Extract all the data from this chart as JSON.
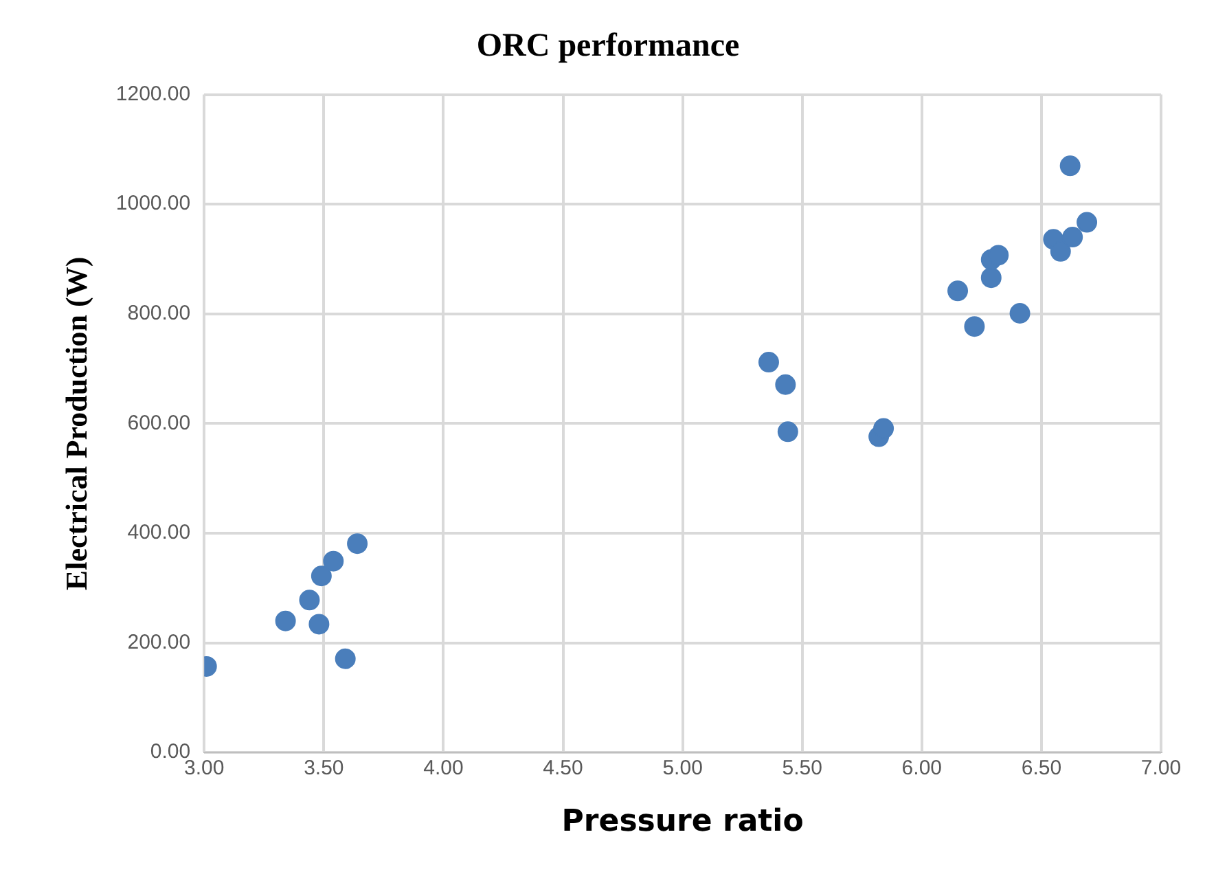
{
  "chart_data": {
    "type": "scatter",
    "title": "ORC performance",
    "xlabel": "Pressure ratio",
    "ylabel": "Electrical Production (W)",
    "x": [
      3.01,
      3.34,
      3.44,
      3.48,
      3.49,
      3.54,
      3.59,
      3.64,
      5.36,
      5.43,
      5.44,
      5.82,
      5.84,
      6.15,
      6.22,
      6.29,
      6.29,
      6.32,
      6.41,
      6.55,
      6.58,
      6.63,
      6.62,
      6.69
    ],
    "values": [
      157,
      240,
      278,
      234,
      322,
      349,
      171,
      381,
      712,
      671,
      585,
      576,
      591,
      842,
      777,
      866,
      899,
      907,
      801,
      936,
      914,
      940,
      1070,
      967
    ],
    "color": "#4a7ebb",
    "marker": "circle",
    "grid": true,
    "legend": false,
    "xlim": [
      3,
      7
    ],
    "xticks": [
      {
        "value": 3,
        "label": "3.00"
      },
      {
        "value": 3.5,
        "label": "3.50"
      },
      {
        "value": 4,
        "label": "4.00"
      },
      {
        "value": 4.5,
        "label": "4.50"
      },
      {
        "value": 5,
        "label": "5.00"
      },
      {
        "value": 5.5,
        "label": "5.50"
      },
      {
        "value": 6,
        "label": "6.00"
      },
      {
        "value": 6.5,
        "label": "6.50"
      },
      {
        "value": 7,
        "label": "7.00"
      }
    ],
    "ylim": [
      0,
      1200
    ],
    "yticks": [
      {
        "value": 0,
        "label": "0.00"
      },
      {
        "value": 200,
        "label": "200.00"
      },
      {
        "value": 400,
        "label": "400.00"
      },
      {
        "value": 600,
        "label": "600.00"
      },
      {
        "value": 800,
        "label": "800.00"
      },
      {
        "value": 1000,
        "label": "1000.00"
      },
      {
        "value": 1200,
        "label": "1200.00"
      }
    ]
  }
}
